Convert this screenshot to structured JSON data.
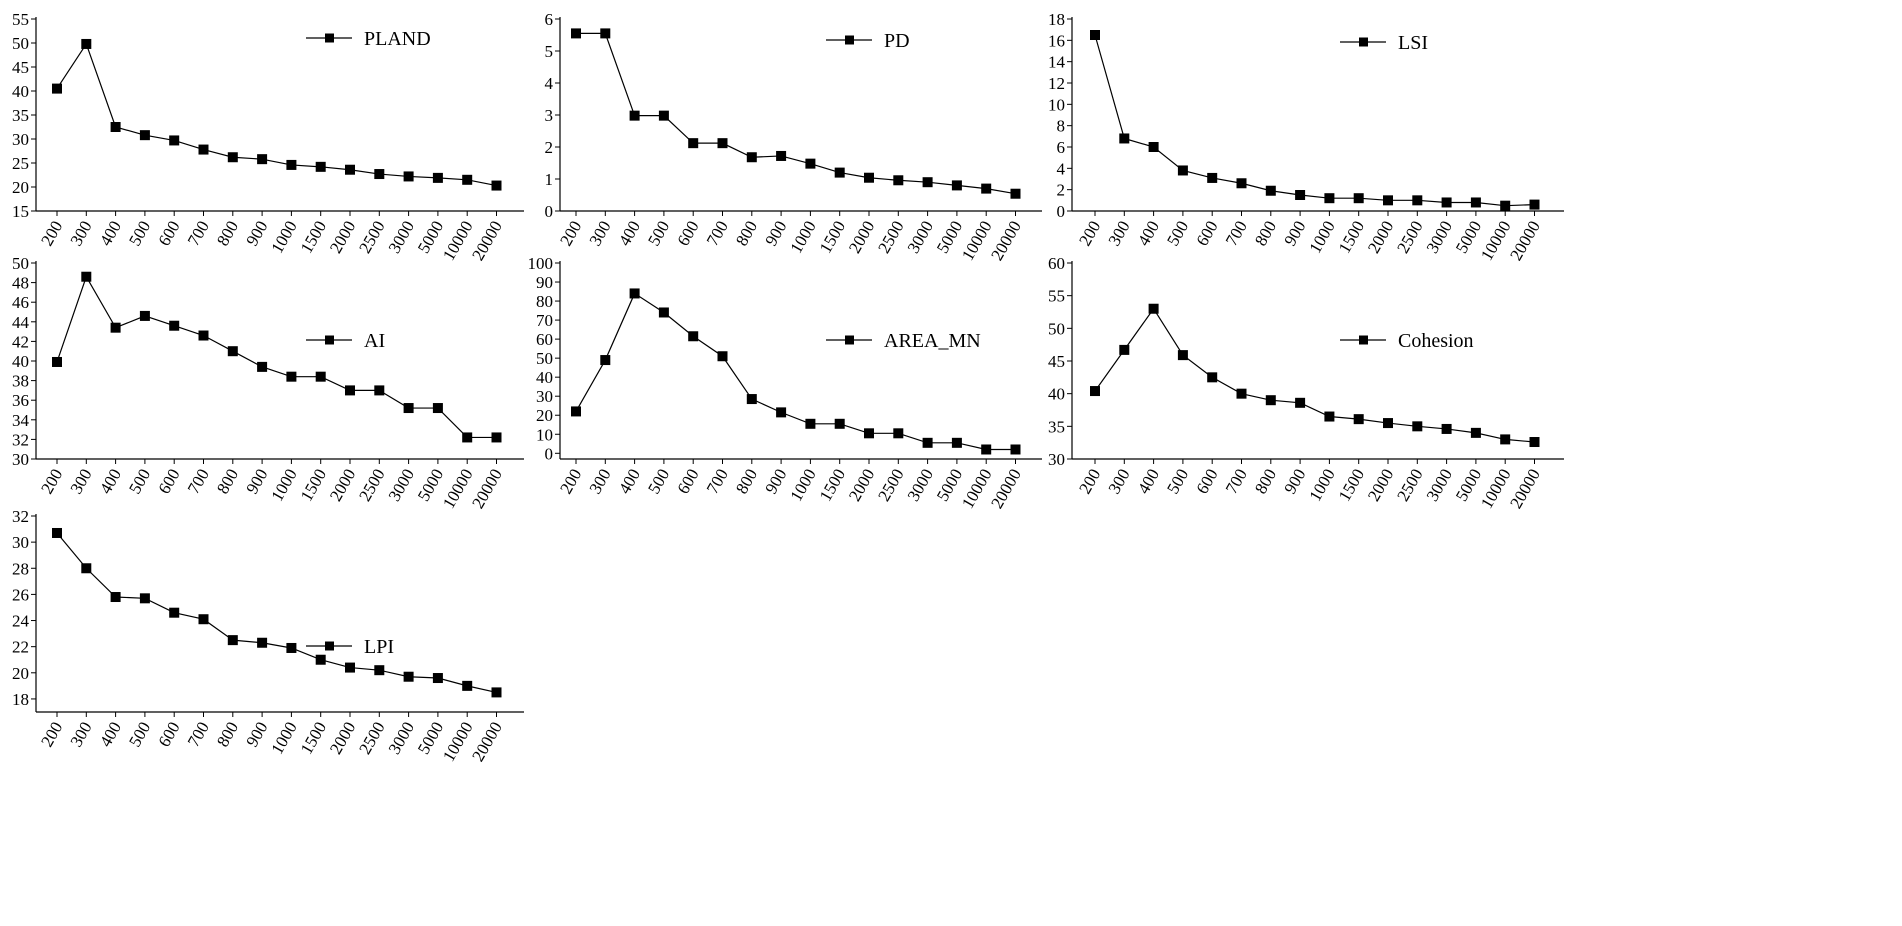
{
  "chart_data": [
    {
      "type": "line",
      "categories": [
        "200",
        "300",
        "400",
        "500",
        "600",
        "700",
        "800",
        "900",
        "1000",
        "1500",
        "2000",
        "2500",
        "3000",
        "5000",
        "10000",
        "20000"
      ],
      "series": [
        {
          "name": "PLAND",
          "values": [
            40.5,
            49.8,
            32.5,
            30.8,
            29.7,
            27.8,
            26.2,
            25.8,
            24.6,
            24.2,
            23.6,
            22.7,
            22.2,
            21.9,
            21.5,
            20.3
          ]
        }
      ],
      "ylim": [
        15,
        55
      ],
      "yticks": [
        15,
        20,
        25,
        30,
        35,
        40,
        45,
        50,
        55
      ],
      "legend": "top-center",
      "grid": false
    },
    {
      "type": "line",
      "categories": [
        "200",
        "300",
        "400",
        "500",
        "600",
        "700",
        "800",
        "900",
        "1000",
        "1500",
        "2000",
        "2500",
        "3000",
        "5000",
        "10000",
        "20000"
      ],
      "series": [
        {
          "name": "PD",
          "values": [
            5.55,
            5.55,
            2.98,
            2.98,
            2.12,
            2.12,
            1.68,
            1.72,
            1.48,
            1.2,
            1.04,
            0.96,
            0.9,
            0.8,
            0.7,
            0.54
          ]
        }
      ],
      "ylim": [
        0,
        6
      ],
      "yticks": [
        0,
        1,
        2,
        3,
        4,
        5,
        6
      ],
      "legend": "top-center",
      "grid": false
    },
    {
      "type": "line",
      "categories": [
        "200",
        "300",
        "400",
        "500",
        "600",
        "700",
        "800",
        "900",
        "1000",
        "1500",
        "2000",
        "2500",
        "3000",
        "5000",
        "10000",
        "20000"
      ],
      "series": [
        {
          "name": "LSI",
          "values": [
            16.5,
            6.8,
            6.0,
            3.8,
            3.1,
            2.6,
            1.9,
            1.5,
            1.2,
            1.2,
            1.0,
            1.0,
            0.8,
            0.8,
            0.5,
            0.6
          ]
        }
      ],
      "ylim": [
        0,
        18
      ],
      "yticks": [
        0,
        2,
        4,
        6,
        8,
        10,
        12,
        14,
        16,
        18
      ],
      "legend": "top-center",
      "grid": false
    },
    {
      "type": "line",
      "categories": [
        "200",
        "300",
        "400",
        "500",
        "600",
        "700",
        "800",
        "900",
        "1000",
        "1500",
        "2000",
        "2500",
        "3000",
        "5000",
        "10000",
        "20000"
      ],
      "series": [
        {
          "name": "AI",
          "values": [
            39.9,
            48.6,
            43.4,
            44.6,
            43.6,
            42.6,
            41.0,
            39.4,
            38.4,
            38.4,
            37.0,
            37.0,
            35.2,
            35.2,
            32.2,
            32.2
          ]
        }
      ],
      "ylim": [
        30,
        50
      ],
      "yticks": [
        30,
        32,
        34,
        36,
        38,
        40,
        42,
        44,
        46,
        48,
        50
      ],
      "legend": "top-center",
      "grid": false
    },
    {
      "type": "line",
      "categories": [
        "200",
        "300",
        "400",
        "500",
        "600",
        "700",
        "800",
        "900",
        "1000",
        "1500",
        "2000",
        "2500",
        "3000",
        "5000",
        "10000",
        "20000"
      ],
      "series": [
        {
          "name": "AREA_MN",
          "values": [
            22,
            49,
            84,
            74,
            61.5,
            51,
            28.5,
            21.5,
            15.5,
            15.5,
            10.5,
            10.5,
            5.5,
            5.5,
            2,
            2
          ]
        }
      ],
      "ylim": [
        -3,
        100
      ],
      "yticks": [
        0,
        10,
        20,
        30,
        40,
        50,
        60,
        70,
        80,
        90,
        100
      ],
      "legend": "top-center",
      "grid": false
    },
    {
      "type": "line",
      "categories": [
        "200",
        "300",
        "400",
        "500",
        "600",
        "700",
        "800",
        "900",
        "1000",
        "1500",
        "2000",
        "2500",
        "3000",
        "5000",
        "10000",
        "20000"
      ],
      "series": [
        {
          "name": "Cohesion",
          "values": [
            40.4,
            46.7,
            53.0,
            45.9,
            42.5,
            40.0,
            39.0,
            38.6,
            36.5,
            36.1,
            35.5,
            35.0,
            34.6,
            34.0,
            33.0,
            32.6
          ]
        }
      ],
      "ylim": [
        30,
        60
      ],
      "yticks": [
        30,
        35,
        40,
        45,
        50,
        55,
        60
      ],
      "legend": "top-center",
      "grid": false
    },
    {
      "type": "line",
      "categories": [
        "200",
        "300",
        "400",
        "500",
        "600",
        "700",
        "800",
        "900",
        "1000",
        "1500",
        "2000",
        "2500",
        "3000",
        "5000",
        "10000",
        "20000"
      ],
      "series": [
        {
          "name": "LPI",
          "values": [
            30.7,
            28.0,
            25.8,
            25.7,
            24.6,
            24.1,
            22.5,
            22.3,
            21.9,
            21.0,
            20.4,
            20.2,
            19.7,
            19.6,
            19.0,
            18.5
          ]
        }
      ],
      "ylim": [
        17,
        32
      ],
      "yticks": [
        18,
        20,
        22,
        24,
        26,
        28,
        30,
        32
      ],
      "legend": "top-center",
      "grid": false
    }
  ]
}
